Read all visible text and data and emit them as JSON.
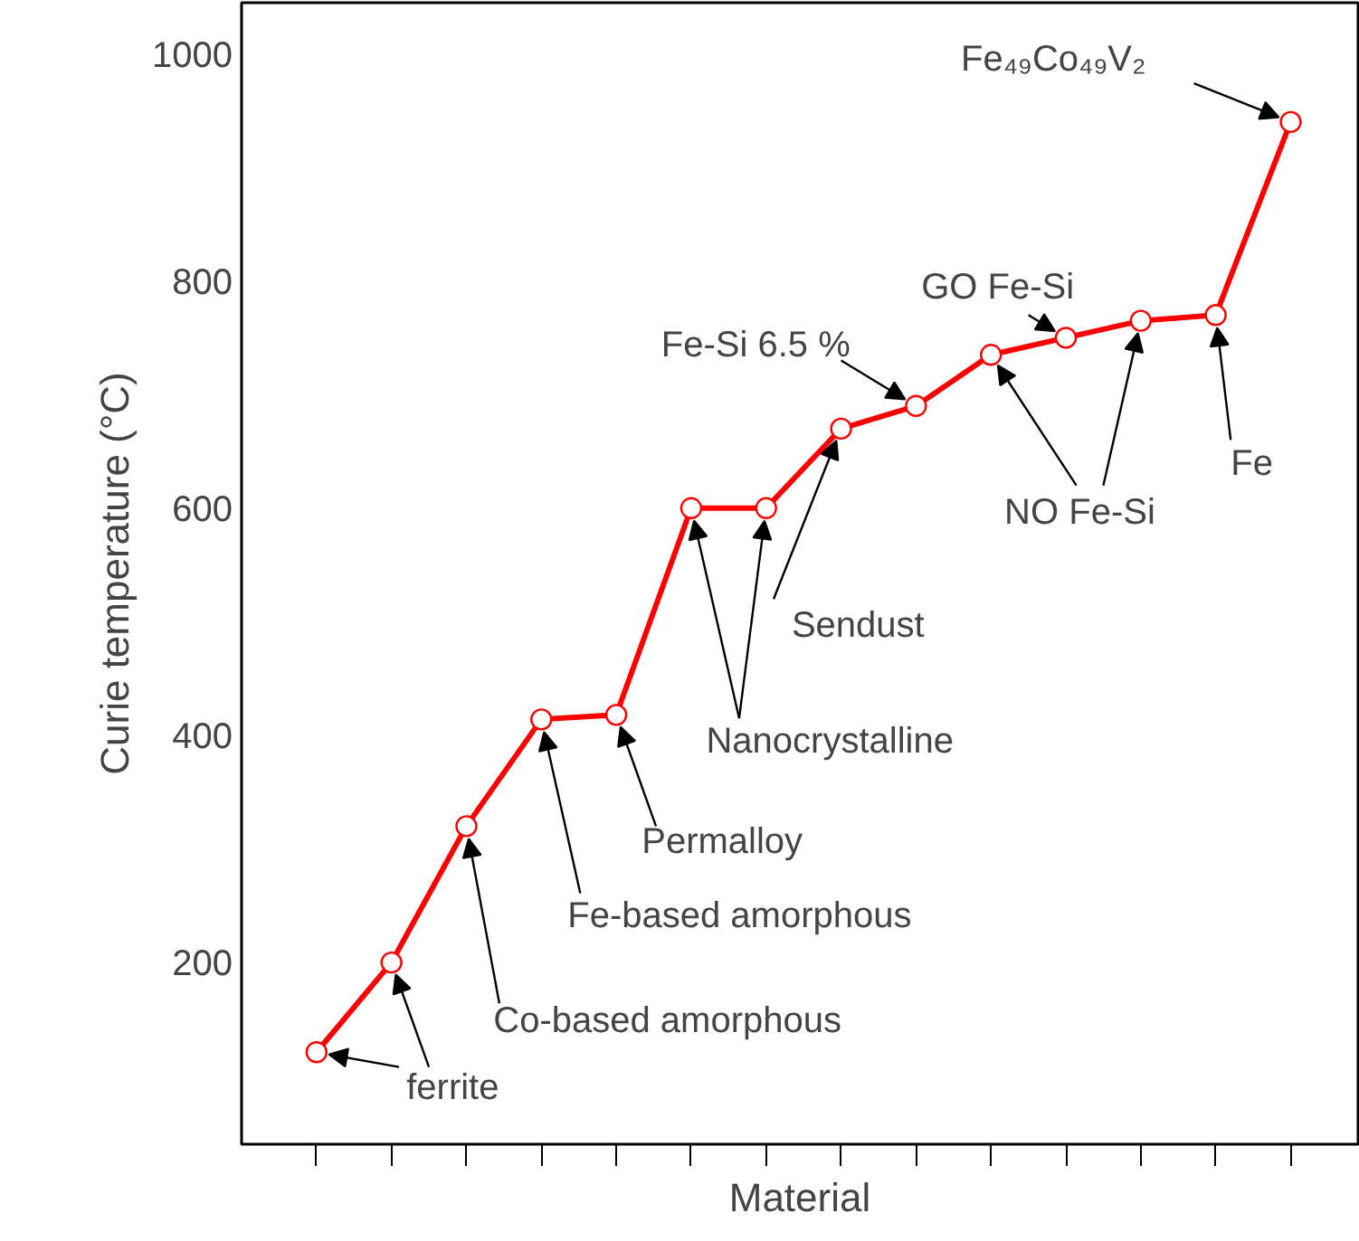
{
  "chart_data": {
    "type": "line",
    "xlabel": "Material",
    "ylabel": "Curie temperature (°C)",
    "categories": [
      null,
      null,
      null,
      null,
      null,
      null,
      null,
      null,
      null,
      null,
      null,
      null,
      null,
      null
    ],
    "values": [
      121,
      200,
      320,
      414,
      418,
      600,
      600,
      670,
      690,
      735,
      750,
      765,
      770,
      940
    ],
    "color": "#ff0000",
    "marker": "circle",
    "grid": false,
    "ylim": [
      40,
      1045
    ],
    "yticks": [
      200,
      400,
      600,
      800,
      1000
    ],
    "annotations": [
      "ferrite",
      "Co-based amorphous",
      "Fe-based amorphous",
      "Permalloy",
      "Nanocrystalline",
      "Sendust",
      "Fe-Si 6.5 %",
      "GO Fe-Si",
      "NO Fe-Si",
      "Fe",
      "Fe₄₉Co₄₉V₂"
    ]
  }
}
